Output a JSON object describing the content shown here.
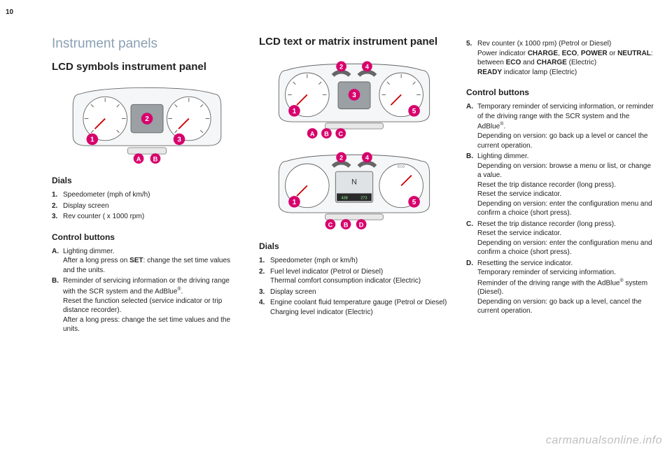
{
  "page_number": "10",
  "watermark": "carmanualsonline.info",
  "col1": {
    "section_title": "Instrument panels",
    "sub_title": "LCD symbols instrument panel",
    "dials_heading": "Dials",
    "dials": [
      {
        "mk": "1.",
        "tx": "Speedometer (mph of km/h)"
      },
      {
        "mk": "2.",
        "tx": "Display screen"
      },
      {
        "mk": "3.",
        "tx": "Rev counter ( x 1000 rpm)"
      }
    ],
    "ctrl_heading": "Control buttons",
    "ctrl": [
      {
        "mk": "A.",
        "lines": [
          "Lighting dimmer.",
          "After a long press on <b>SET</b>: change the set time values and the units."
        ]
      },
      {
        "mk": "B.",
        "lines": [
          "Reminder of servicing information or the driving range with the SCR system and the AdBlue<sup>®</sup>.",
          "Reset the function selected (service indicator or trip distance recorder).",
          "After a long press: change the set time values and the units."
        ]
      }
    ]
  },
  "col2": {
    "sub_title": "LCD text or matrix instrument panel",
    "dials_heading": "Dials",
    "dials": [
      {
        "mk": "1.",
        "lines": [
          "Speedometer (mph or km/h)"
        ]
      },
      {
        "mk": "2.",
        "lines": [
          "Fuel level indicator (Petrol or Diesel)",
          "Thermal comfort consumption indicator (Electric)"
        ]
      },
      {
        "mk": "3.",
        "lines": [
          "Display screen"
        ]
      },
      {
        "mk": "4.",
        "lines": [
          "Engine coolant fluid temperature gauge (Petrol or Diesel)",
          "Charging level indicator (Electric)"
        ]
      }
    ]
  },
  "col3": {
    "cont": [
      {
        "mk": "5.",
        "lines": [
          "Rev counter (x 1000 rpm) (Petrol or Diesel)",
          "Power indicator <b>CHARGE</b>, <b>ECO</b>, <b>POWER</b> or <b>NEUTRAL</b>: between <b>ECO</b> and <b>CHARGE</b> (Electric)",
          "<b>READY</b> indicator lamp (Electric)"
        ]
      }
    ],
    "ctrl_heading": "Control buttons",
    "ctrl": [
      {
        "mk": "A.",
        "lines": [
          "Temporary reminder of servicing information, or reminder of the driving range with the SCR system and the AdBlue<sup>®</sup>.",
          "Depending on version: go back up a level or cancel the current operation."
        ]
      },
      {
        "mk": "B.",
        "lines": [
          "Lighting dimmer.",
          "Depending on version: browse a menu or list, or change a value.",
          "Reset the trip distance recorder (long press).",
          "Reset the service indicator.",
          "Depending on version: enter the configuration menu and confirm a choice (short press)."
        ]
      },
      {
        "mk": "C.",
        "lines": [
          "Reset the trip distance recorder (long press).",
          "Reset the service indicator.",
          "Depending on version: enter the configuration menu and confirm a choice (short press)."
        ]
      },
      {
        "mk": "D.",
        "lines": [
          "Resetting the service indicator.",
          "Temporary reminder of servicing information.",
          "Reminder of the driving range with the AdBlue<sup>®</sup> system (Diesel).",
          "Depending on version: go back up a level, cancel the current operation."
        ]
      }
    ]
  },
  "fig": {
    "callout_fill": "#d7006c",
    "callout_text": "#ffffff",
    "panel_fill": "#f4f6f7",
    "panel_stroke": "#666666",
    "screen_fill": "#9aa0a4",
    "tick_color": "#555555",
    "fig1": {
      "numbers": [
        "1",
        "2",
        "3"
      ],
      "letters": [
        "A",
        "B"
      ]
    },
    "fig2": {
      "top_numbers": [
        "2",
        "4"
      ],
      "main_numbers": [
        "1",
        "3",
        "5"
      ],
      "letters": [
        "A",
        "B",
        "C"
      ]
    },
    "fig3": {
      "top_numbers": [
        "2",
        "4"
      ],
      "main_numbers": [
        "1",
        "5"
      ],
      "letters": [
        "C",
        "B",
        "D"
      ],
      "screen_n": "N",
      "lcd_left": "438",
      "lcd_right": "273"
    }
  }
}
